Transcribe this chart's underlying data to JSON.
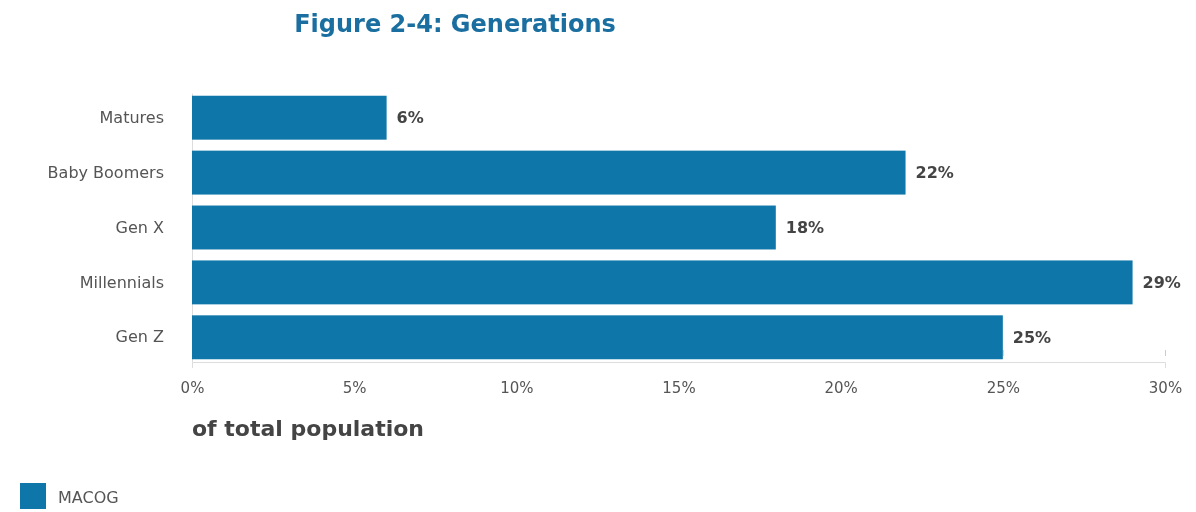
{
  "chart_data": {
    "type": "bar",
    "orientation": "horizontal",
    "title": "Figure 2-4: Generations",
    "xlabel": "of total population",
    "categories": [
      "Matures",
      "Baby Boomers",
      "Gen X",
      "Millennials",
      "Gen Z"
    ],
    "series": [
      {
        "name": "MACOG",
        "color": "#0e76a8",
        "values": [
          6,
          22,
          18,
          29,
          25
        ]
      }
    ],
    "value_labels": [
      "6%",
      "22%",
      "18%",
      "29%",
      "25%"
    ],
    "xlim": [
      0,
      30
    ],
    "xticks": [
      {
        "value": 0,
        "label": "0%"
      },
      {
        "value": 5,
        "label": "5%"
      },
      {
        "value": 10,
        "label": "10%"
      },
      {
        "value": 15,
        "label": "15%"
      },
      {
        "value": 20,
        "label": "20%"
      },
      {
        "value": 25,
        "label": "25%"
      },
      {
        "value": 30,
        "label": "30%"
      }
    ],
    "grid": false,
    "legend": "bottom left"
  }
}
